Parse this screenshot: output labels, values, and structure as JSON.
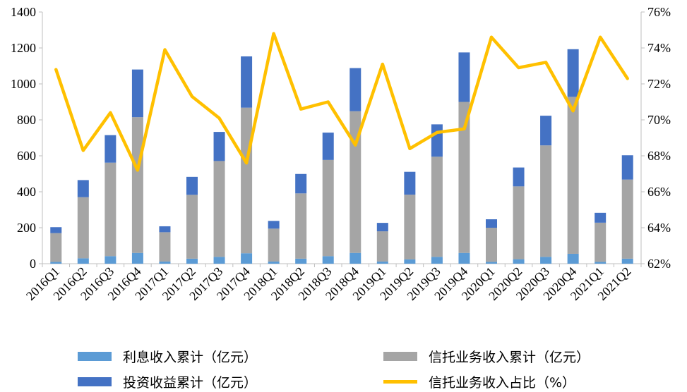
{
  "chart_data": {
    "type": "bar",
    "stacked": true,
    "categories": [
      "2016Q1",
      "2016Q2",
      "2016Q3",
      "2016Q4",
      "2017Q1",
      "2017Q2",
      "2017Q3",
      "2017Q4",
      "2018Q1",
      "2018Q2",
      "2018Q3",
      "2018Q4",
      "2019Q1",
      "2019Q2",
      "2019Q3",
      "2019Q4",
      "2020Q1",
      "2020Q2",
      "2020Q3",
      "2020Q4",
      "2021Q1",
      "2021Q2"
    ],
    "series": [
      {
        "name": "利息收入累计（亿元）",
        "axis": "left",
        "color": "#5B9BD5",
        "values": [
          10,
          30,
          42,
          60,
          12,
          28,
          38,
          58,
          12,
          28,
          42,
          60,
          12,
          24,
          38,
          60,
          10,
          25,
          38,
          55,
          10,
          28
        ]
      },
      {
        "name": "信托业务收入累计（亿元）",
        "axis": "left",
        "color": "#A5A5A5",
        "values": [
          160,
          340,
          520,
          755,
          163,
          355,
          533,
          810,
          183,
          363,
          535,
          788,
          168,
          360,
          557,
          840,
          190,
          405,
          620,
          873,
          218,
          440
        ]
      },
      {
        "name": "投资收益累计（亿元）",
        "axis": "left",
        "color": "#4472C4",
        "values": [
          33,
          95,
          153,
          265,
          33,
          100,
          162,
          285,
          43,
          108,
          152,
          240,
          47,
          127,
          180,
          275,
          47,
          105,
          165,
          265,
          55,
          135
        ]
      },
      {
        "name": "信托业务收入占比（%）",
        "axis": "right",
        "type": "line",
        "color": "#FFC000",
        "values": [
          72.8,
          68.3,
          70.4,
          67.2,
          73.9,
          71.3,
          70.1,
          67.6,
          74.8,
          70.6,
          71.0,
          68.6,
          73.1,
          68.4,
          69.3,
          69.5,
          74.6,
          72.9,
          73.2,
          70.5,
          74.6,
          72.3
        ]
      }
    ],
    "yaxis_left": {
      "min": 0,
      "max": 1400,
      "ticks": [
        0,
        200,
        400,
        600,
        800,
        1000,
        1200,
        1400
      ]
    },
    "yaxis_right": {
      "min": 62,
      "max": 76,
      "ticks": [
        "62%",
        "64%",
        "66%",
        "68%",
        "70%",
        "72%",
        "74%",
        "76%"
      ],
      "tick_values": [
        62,
        64,
        66,
        68,
        70,
        72,
        74,
        76
      ]
    },
    "left_tick_labels": [
      "0",
      "200",
      "400",
      "600",
      "800",
      "1000",
      "1200",
      "1400"
    ],
    "title": "",
    "xlabel": "",
    "ylabel": "",
    "grid": false,
    "legend_position": "bottom"
  },
  "legend": {
    "interest": "利息收入累计（亿元）",
    "trust": "信托业务收入累计（亿元）",
    "invest": "投资收益累计（亿元）",
    "ratio": "信托业务收入占比（%）"
  },
  "colors": {
    "interest": "#5B9BD5",
    "trust": "#A5A5A5",
    "invest": "#4472C4",
    "ratio": "#FFC000",
    "axis": "#BFBFBF"
  }
}
